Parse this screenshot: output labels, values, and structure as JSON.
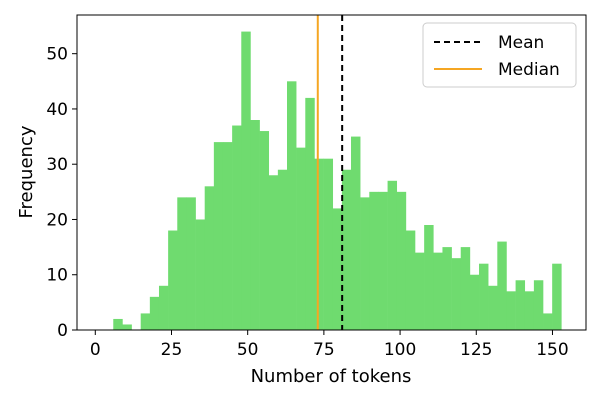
{
  "chart_data": {
    "type": "bar",
    "subtype": "histogram",
    "xlabel": "Number of tokens",
    "ylabel": "Frequency",
    "xlim": [
      -6,
      161
    ],
    "ylim": [
      0,
      57
    ],
    "xticks": [
      0,
      25,
      50,
      75,
      100,
      125,
      150
    ],
    "yticks": [
      0,
      10,
      20,
      30,
      40,
      50
    ],
    "grid": false,
    "legend_position": "top-right",
    "bar_color": "#6fdb6f",
    "bin_start": 5.9,
    "bin_width": 3.0,
    "counts": [
      2,
      1,
      0,
      3,
      6,
      8,
      18,
      24,
      24,
      20,
      26,
      34,
      34,
      37,
      54,
      38,
      36,
      28,
      29,
      45,
      33,
      42,
      31,
      31,
      22,
      29,
      35,
      24,
      25,
      25,
      27,
      25,
      18,
      14,
      19,
      14,
      15,
      13,
      15,
      10,
      12,
      8,
      16,
      7,
      9,
      7,
      9,
      3,
      12
    ],
    "reference_lines": [
      {
        "name": "Mean",
        "x": 81.0,
        "color": "#000000",
        "style": "dashed"
      },
      {
        "name": "Median",
        "x": 73.0,
        "color": "#f5a623",
        "style": "solid"
      }
    ]
  }
}
